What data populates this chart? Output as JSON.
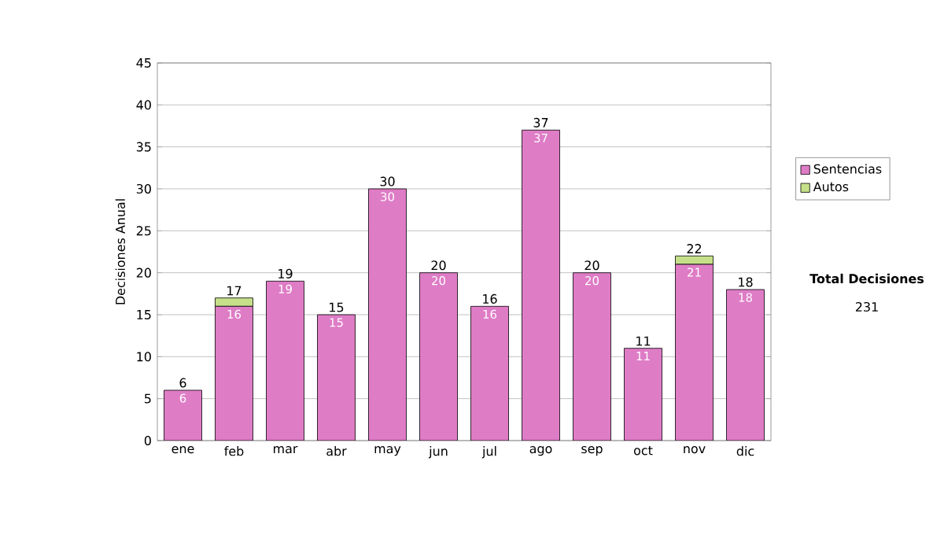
{
  "chart_data": {
    "type": "bar",
    "stacked": true,
    "ylabel": "Decisiones Anual",
    "categories": [
      "ene",
      "feb",
      "mar",
      "abr",
      "may",
      "jun",
      "jul",
      "ago",
      "sep",
      "oct",
      "nov",
      "dic"
    ],
    "series": [
      {
        "name": "Sentencias",
        "color": "#de7cc6",
        "values": [
          6,
          16,
          19,
          15,
          30,
          20,
          16,
          37,
          20,
          11,
          21,
          18
        ],
        "value_labels": [
          "6",
          "16",
          "19",
          "15",
          "30",
          "20",
          "16",
          "37",
          "20",
          "11",
          "21",
          "18"
        ]
      },
      {
        "name": "Autos",
        "color": "#c6e08a",
        "values": [
          0,
          1,
          0,
          0,
          0,
          0,
          0,
          0,
          0,
          0,
          1,
          0
        ]
      }
    ],
    "totals": [
      "6",
      "17",
      "19",
      "15",
      "30",
      "20",
      "16",
      "37",
      "20",
      "11",
      "22",
      "18"
    ],
    "ylim": [
      0,
      45
    ],
    "yticks": [
      0,
      5,
      10,
      15,
      20,
      25,
      30,
      35,
      40,
      45
    ],
    "grid": "y",
    "legend": "right",
    "annotations": [
      "Total Decisiones",
      "231"
    ]
  }
}
